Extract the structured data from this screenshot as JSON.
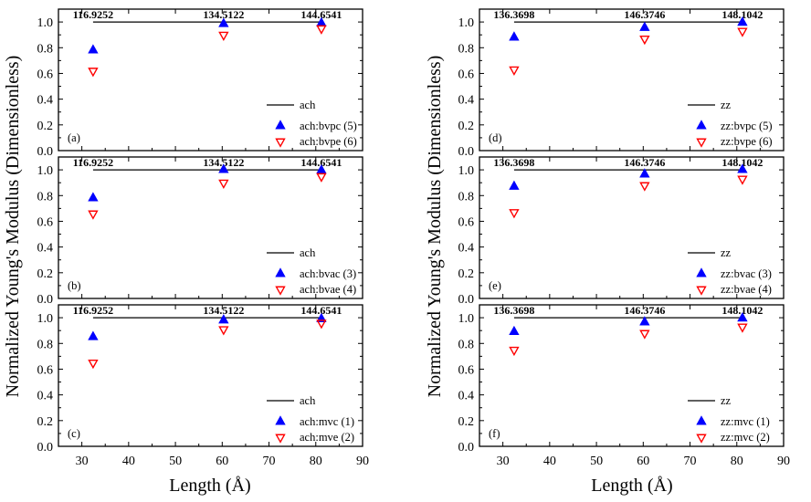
{
  "figure": {
    "ylabel": "Normalized Young's Modulus (Dimensionless)",
    "xlabel": "Length (Å)"
  },
  "chart_data": [
    {
      "type": "scatter",
      "panel": "(a)",
      "xlim": [
        25,
        90
      ],
      "ylim": [
        0,
        1.1
      ],
      "reference_label": "ach",
      "reference_y": 1.0,
      "reference_x": [
        32.4,
        81.2
      ],
      "annotations": [
        {
          "x": 32.4,
          "text": "116.9252"
        },
        {
          "x": 60.3,
          "text": "134.5122"
        },
        {
          "x": 81.2,
          "text": "144.6541"
        }
      ],
      "series": [
        {
          "name": "ach:bvpc (5)",
          "marker": "up",
          "x": [
            32.4,
            60.3,
            81.2
          ],
          "y": [
            0.78,
            0.985,
            0.99
          ]
        },
        {
          "name": "ach:bvpe (6)",
          "marker": "down",
          "x": [
            32.4,
            60.3,
            81.2
          ],
          "y": [
            0.62,
            0.9,
            0.95
          ]
        }
      ]
    },
    {
      "type": "scatter",
      "panel": "(b)",
      "xlim": [
        25,
        90
      ],
      "ylim": [
        0,
        1.1
      ],
      "reference_label": "ach",
      "reference_y": 1.0,
      "reference_x": [
        32.4,
        81.2
      ],
      "annotations": [
        {
          "x": 32.4,
          "text": "116.9252"
        },
        {
          "x": 60.3,
          "text": "134.5122"
        },
        {
          "x": 81.2,
          "text": "144.6541"
        }
      ],
      "series": [
        {
          "name": "ach:bvac (3)",
          "marker": "up",
          "x": [
            32.4,
            60.3,
            81.2
          ],
          "y": [
            0.78,
            1.0,
            0.995
          ]
        },
        {
          "name": "ach:bvae (4)",
          "marker": "down",
          "x": [
            32.4,
            60.3,
            81.2
          ],
          "y": [
            0.66,
            0.9,
            0.95
          ]
        }
      ]
    },
    {
      "type": "scatter",
      "panel": "(c)",
      "xlim": [
        25,
        90
      ],
      "ylim": [
        0,
        1.1
      ],
      "reference_label": "ach",
      "reference_y": 1.0,
      "reference_x": [
        32.4,
        81.2
      ],
      "annotations": [
        {
          "x": 32.4,
          "text": "116.9252"
        },
        {
          "x": 60.3,
          "text": "134.5122"
        },
        {
          "x": 81.2,
          "text": "144.6541"
        }
      ],
      "series": [
        {
          "name": "ach:mvc (1)",
          "marker": "up",
          "x": [
            32.4,
            60.3,
            81.2
          ],
          "y": [
            0.85,
            0.98,
            0.99
          ]
        },
        {
          "name": "ach:mve (2)",
          "marker": "down",
          "x": [
            32.4,
            60.3,
            81.2
          ],
          "y": [
            0.65,
            0.91,
            0.96
          ]
        }
      ]
    },
    {
      "type": "scatter",
      "panel": "(d)",
      "xlim": [
        25,
        90
      ],
      "ylim": [
        0,
        1.1
      ],
      "reference_label": "zz",
      "reference_y": 1.0,
      "reference_x": [
        32.4,
        81.2
      ],
      "annotations": [
        {
          "x": 32.4,
          "text": "136.3698"
        },
        {
          "x": 60.3,
          "text": "146.3746"
        },
        {
          "x": 81.2,
          "text": "148.1042"
        }
      ],
      "series": [
        {
          "name": "zz:bvpc (5)",
          "marker": "up",
          "x": [
            32.4,
            60.3,
            81.2
          ],
          "y": [
            0.88,
            0.955,
            0.995
          ]
        },
        {
          "name": "zz:bvpe (6)",
          "marker": "down",
          "x": [
            32.4,
            60.3,
            81.2
          ],
          "y": [
            0.63,
            0.87,
            0.93
          ]
        }
      ]
    },
    {
      "type": "scatter",
      "panel": "(e)",
      "xlim": [
        25,
        90
      ],
      "ylim": [
        0,
        1.1
      ],
      "reference_label": "zz",
      "reference_y": 1.0,
      "reference_x": [
        32.4,
        81.2
      ],
      "annotations": [
        {
          "x": 32.4,
          "text": "136.3698"
        },
        {
          "x": 60.3,
          "text": "146.3746"
        },
        {
          "x": 81.2,
          "text": "148.1042"
        }
      ],
      "series": [
        {
          "name": "zz:bvac (3)",
          "marker": "up",
          "x": [
            32.4,
            60.3,
            81.2
          ],
          "y": [
            0.87,
            0.965,
            1.0
          ]
        },
        {
          "name": "zz:bvae (4)",
          "marker": "down",
          "x": [
            32.4,
            60.3,
            81.2
          ],
          "y": [
            0.67,
            0.88,
            0.93
          ]
        }
      ]
    },
    {
      "type": "scatter",
      "panel": "(f)",
      "xlim": [
        25,
        90
      ],
      "ylim": [
        0,
        1.1
      ],
      "reference_label": "zz",
      "reference_y": 1.0,
      "reference_x": [
        32.4,
        81.2
      ],
      "annotations": [
        {
          "x": 32.4,
          "text": "136.3698"
        },
        {
          "x": 60.3,
          "text": "146.3746"
        },
        {
          "x": 81.2,
          "text": "148.1042"
        }
      ],
      "series": [
        {
          "name": "zz:mvc (1)",
          "marker": "up",
          "x": [
            32.4,
            60.3,
            81.2
          ],
          "y": [
            0.89,
            0.965,
            0.995
          ]
        },
        {
          "name": "zz:mvc (2)",
          "marker": "down",
          "x": [
            32.4,
            60.3,
            81.2
          ],
          "y": [
            0.75,
            0.88,
            0.93
          ]
        }
      ]
    }
  ],
  "axes": {
    "y_ticks": [
      0.0,
      0.2,
      0.4,
      0.6,
      0.8,
      1.0
    ],
    "y_tick_labels": [
      "0.0",
      "0.2",
      "0.4",
      "0.6",
      "0.8",
      "1.0"
    ],
    "x_ticks": [
      30,
      40,
      50,
      60,
      70,
      80,
      90
    ],
    "x_tick_labels": [
      "30",
      "40",
      "50",
      "60",
      "70",
      "80",
      "90"
    ]
  },
  "colors": {
    "up_marker": "#0000ff",
    "down_marker": "#ff0000",
    "axis": "#000000",
    "reference_line": "#000000"
  }
}
